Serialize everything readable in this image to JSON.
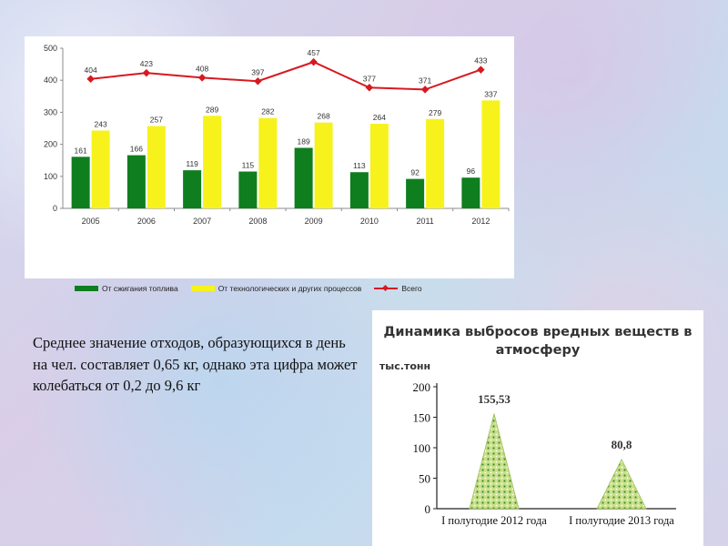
{
  "note_text": "Среднее значение отходов, образующихся в день на чел. составляет 0,65 кг, однако эта цифра может колебаться от 0,2 до 9,6 кг",
  "colors": {
    "bar_fuel": "#0f7e1e",
    "bar_process": "#f7f21c",
    "line_total": "#d71920",
    "cone_fill": "#c9e08a"
  },
  "chart_data": [
    {
      "type": "bar",
      "categories": [
        "2005",
        "2006",
        "2007",
        "2008",
        "2009",
        "2010",
        "2011",
        "2012"
      ],
      "series": [
        {
          "name": "От сжигания топлива",
          "type": "bar",
          "values": [
            161,
            166,
            119,
            115,
            189,
            113,
            92,
            96
          ]
        },
        {
          "name": "От технологических и других процессов",
          "type": "bar",
          "values": [
            243,
            257,
            289,
            282,
            268,
            264,
            279,
            337
          ]
        },
        {
          "name": "Всего",
          "type": "line",
          "values": [
            404,
            423,
            408,
            397,
            457,
            377,
            371,
            433
          ]
        }
      ],
      "yticks": [
        "0",
        "100",
        "200",
        "300",
        "400",
        "500"
      ],
      "ylim": [
        0,
        500
      ],
      "grid": false,
      "legend": "bottom"
    },
    {
      "type": "area",
      "title": "Динамика выбросов вредных веществ в атмосферу",
      "ylabel": "тыс.тонн",
      "categories": [
        "I полугодие 2012 года",
        "I полугодие 2013 года"
      ],
      "values": [
        155.53,
        80.8
      ],
      "data_labels": [
        "155,53",
        "80,8"
      ],
      "yticks": [
        "0",
        "50",
        "100",
        "150",
        "200"
      ],
      "ylim": [
        0,
        200
      ],
      "grid": false
    }
  ]
}
